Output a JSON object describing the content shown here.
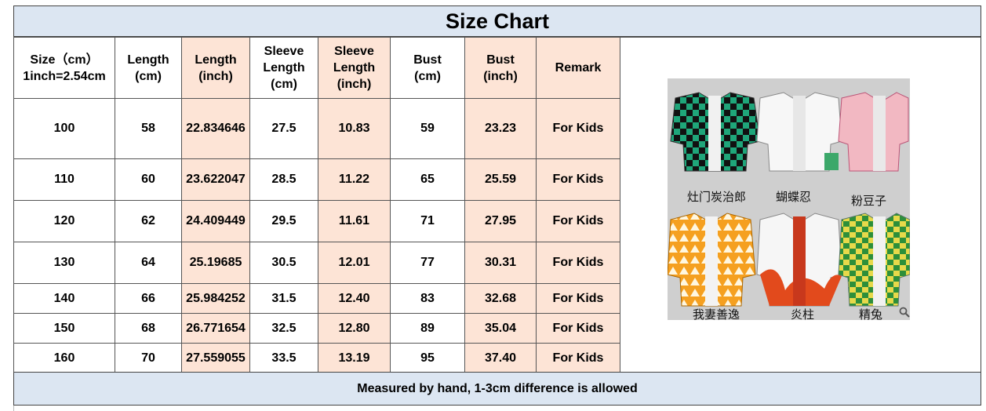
{
  "title": "Size Chart",
  "headers": [
    [
      "Size（cm）",
      "1inch=2.54cm"
    ],
    [
      "Length",
      "(cm)"
    ],
    [
      "Length",
      "(inch)"
    ],
    [
      "Sleeve",
      "Length",
      "(cm)"
    ],
    [
      "Sleeve",
      "Length",
      "(inch)"
    ],
    [
      "Bust",
      "(cm)"
    ],
    [
      "Bust",
      "(inch)"
    ],
    [
      "Remark"
    ]
  ],
  "rows": [
    [
      "100",
      "58",
      "22.834646",
      "27.5",
      "10.83",
      "59",
      "23.23",
      "For Kids"
    ],
    [
      "110",
      "60",
      "23.622047",
      "28.5",
      "11.22",
      "65",
      "25.59",
      "For Kids"
    ],
    [
      "120",
      "62",
      "24.409449",
      "29.5",
      "11.61",
      "71",
      "27.95",
      "For Kids"
    ],
    [
      "130",
      "64",
      "25.19685",
      "30.5",
      "12.01",
      "77",
      "30.31",
      "For Kids"
    ],
    [
      "140",
      "66",
      "25.984252",
      "31.5",
      "12.40",
      "83",
      "32.68",
      "For Kids"
    ],
    [
      "150",
      "68",
      "26.771654",
      "32.5",
      "12.80",
      "89",
      "35.04",
      "For Kids"
    ],
    [
      "160",
      "70",
      "27.559055",
      "33.5",
      "13.19",
      "95",
      "37.40",
      "For Kids"
    ]
  ],
  "product_labels": [
    "灶门炭治郎",
    "蝴蝶忍",
    "粉豆子",
    "我妻善逸",
    "炎柱",
    "精兔"
  ],
  "footer": "Measured by hand, 1-3cm difference is allowed",
  "colors": {
    "header_band": "#dce6f2",
    "inch_column": "#fde4d6"
  },
  "icons": {
    "search": "search-icon"
  }
}
